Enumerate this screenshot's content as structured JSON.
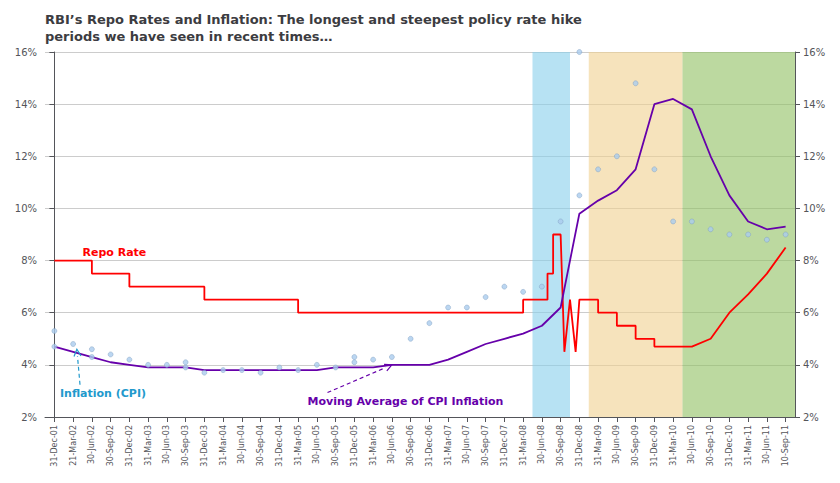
{
  "chart_data": {
    "type": "line",
    "title": "RBI’s Repo Rates and Inflation: The longest and steepest policy rate hike\nperiods we have seen in recent times…",
    "grid": true,
    "xlim": [
      -0.5,
      39.5
    ],
    "xticks": [
      {
        "value": 0,
        "label": "31-Dec-01"
      },
      {
        "value": 1,
        "label": "21-Mar-02"
      },
      {
        "value": 2,
        "label": "30-Jun-02"
      },
      {
        "value": 3,
        "label": "30-Sep-02"
      },
      {
        "value": 4,
        "label": "31-Dec-02"
      },
      {
        "value": 5,
        "label": "31-Mar-03"
      },
      {
        "value": 6,
        "label": "30-Jun-03"
      },
      {
        "value": 7,
        "label": "30-Sep-03"
      },
      {
        "value": 8,
        "label": "31-Dec-03"
      },
      {
        "value": 9,
        "label": "31-Mar-04"
      },
      {
        "value": 10,
        "label": "30-Jun-04"
      },
      {
        "value": 11,
        "label": "30-Sep-04"
      },
      {
        "value": 12,
        "label": "31-Dec-04"
      },
      {
        "value": 13,
        "label": "31-Mar-05"
      },
      {
        "value": 14,
        "label": "30-Jun-05"
      },
      {
        "value": 15,
        "label": "30-Sep-05"
      },
      {
        "value": 16,
        "label": "31-Dec-05"
      },
      {
        "value": 17,
        "label": "31-Mar-06"
      },
      {
        "value": 18,
        "label": "30-Jun-06"
      },
      {
        "value": 19,
        "label": "30-Sep-06"
      },
      {
        "value": 20,
        "label": "31-Dec-06"
      },
      {
        "value": 21,
        "label": "31-Mar-07"
      },
      {
        "value": 22,
        "label": "30-Jun-07"
      },
      {
        "value": 23,
        "label": "30-Sep-07"
      },
      {
        "value": 24,
        "label": "31-Dec-07"
      },
      {
        "value": 25,
        "label": "31-Mar-08"
      },
      {
        "value": 26,
        "label": "30-Jun-08"
      },
      {
        "value": 27,
        "label": "30-Sep-08"
      },
      {
        "value": 28,
        "label": "31-Dec-08"
      },
      {
        "value": 29,
        "label": "31-Mar-09"
      },
      {
        "value": 30,
        "label": "30-Jun-09"
      },
      {
        "value": 31,
        "label": "30-Sep-09"
      },
      {
        "value": 32,
        "label": "31-Dec-09"
      },
      {
        "value": 33,
        "label": "31-Mar-10"
      },
      {
        "value": 34,
        "label": "30-Jun-10"
      },
      {
        "value": 35,
        "label": "30-Sep-10"
      },
      {
        "value": 36,
        "label": "31-Dec-10"
      },
      {
        "value": 37,
        "label": "31-Mar-11"
      },
      {
        "value": 38,
        "label": "30-Jun-11"
      },
      {
        "value": 39,
        "label": "10-Sep-11"
      }
    ],
    "ylim": [
      0.02,
      0.16
    ],
    "yticks": [
      {
        "value": 0.02,
        "label": "2%"
      },
      {
        "value": 0.04,
        "label": "4%"
      },
      {
        "value": 0.06,
        "label": "6%"
      },
      {
        "value": 0.08,
        "label": "8%"
      },
      {
        "value": 0.1,
        "label": "10%"
      },
      {
        "value": 0.12,
        "label": "12%"
      },
      {
        "value": 0.14,
        "label": "14%"
      },
      {
        "value": 0.16,
        "label": "16%"
      }
    ],
    "y2lim": [
      0.02,
      0.16
    ],
    "y2ticks": [
      {
        "value": 0.02,
        "label": "2%"
      },
      {
        "value": 0.04,
        "label": "4%"
      },
      {
        "value": 0.06,
        "label": "6%"
      },
      {
        "value": 0.08,
        "label": "8%"
      },
      {
        "value": 0.1,
        "label": "10%"
      },
      {
        "value": 0.12,
        "label": "12%"
      },
      {
        "value": 0.14,
        "label": "14%"
      },
      {
        "value": 0.16,
        "label": "16%"
      }
    ],
    "bands": [
      {
        "x": [
          25.5,
          27.5
        ],
        "color": "#87CEEB"
      },
      {
        "x": [
          28.5,
          33.5
        ],
        "color": "#F0D090"
      },
      {
        "x": [
          33.5,
          39.5
        ],
        "color": "#90C060"
      }
    ],
    "series": [
      {
        "type": "line",
        "color": "#ff0000",
        "x": [
          0.0,
          2.0,
          2.0,
          4.0,
          4.0,
          8.0,
          8.0,
          13.0,
          13.0,
          17.0,
          17.0,
          20.0,
          20.0,
          22.0,
          22.0,
          23.0,
          23.0,
          25.0,
          25.0,
          26.0,
          26.0,
          26.3,
          26.3,
          26.6,
          26.6,
          27.0,
          27.0,
          27.2,
          27.2,
          27.5,
          27.5,
          27.8,
          27.8,
          28.0,
          28.0,
          29.0,
          29.0,
          30.0,
          30.0,
          31.0,
          31.0,
          32.0,
          32.0,
          33.0,
          33.0,
          34.0,
          34.0,
          35.0,
          35.0,
          36.0,
          36.0,
          37.0,
          37.0,
          38.0,
          38.0,
          39.0
        ],
        "values": [
          0.08,
          0.08,
          0.075,
          0.075,
          0.07,
          0.07,
          0.065,
          0.065,
          0.06,
          0.06,
          0.06,
          0.06,
          0.06,
          0.06,
          0.06,
          0.06,
          0.06,
          0.06,
          0.065,
          0.065,
          0.065,
          0.065,
          0.075,
          0.075,
          0.09,
          0.09,
          0.09,
          0.045,
          0.045,
          0.065,
          0.065,
          0.045,
          0.045,
          0.065,
          0.065,
          0.065,
          0.06,
          0.06,
          0.055,
          0.055,
          0.05,
          0.05,
          0.047,
          0.047,
          0.047,
          0.047,
          0.047,
          0.05,
          0.05,
          0.06,
          0.06,
          0.067,
          0.067,
          0.075,
          0.075,
          0.085
        ]
      },
      {
        "type": "line",
        "color": "#6600aa",
        "x": [
          0,
          1,
          2,
          3,
          4,
          5,
          6,
          7,
          8,
          9,
          10,
          11,
          12,
          13,
          14,
          15,
          16,
          17,
          18,
          19,
          20,
          21,
          22,
          23,
          24,
          25,
          26,
          27,
          28,
          29,
          30,
          31,
          32,
          33,
          34,
          35,
          36,
          37,
          38,
          39
        ],
        "values": [
          0.047,
          0.045,
          0.043,
          0.041,
          0.04,
          0.039,
          0.039,
          0.039,
          0.038,
          0.038,
          0.038,
          0.038,
          0.038,
          0.038,
          0.038,
          0.039,
          0.039,
          0.039,
          0.04,
          0.04,
          0.04,
          0.042,
          0.045,
          0.048,
          0.05,
          0.052,
          0.055,
          0.062,
          0.098,
          0.103,
          0.107,
          0.115,
          0.14,
          0.142,
          0.138,
          0.12,
          0.105,
          0.095,
          0.092,
          0.093
        ]
      },
      {
        "type": "scatter",
        "color": "#aaccee",
        "x": [
          0,
          0,
          1,
          2,
          2,
          3,
          4,
          5,
          6,
          7,
          7,
          8,
          9,
          10,
          11,
          12,
          13,
          14,
          15,
          16,
          16,
          17,
          18,
          19,
          20,
          21,
          22,
          23,
          24,
          25,
          26,
          27,
          28,
          28,
          29,
          30,
          31,
          32,
          33,
          34,
          35,
          36,
          37,
          38,
          39
        ],
        "values": [
          0.053,
          0.047,
          0.048,
          0.046,
          0.043,
          0.044,
          0.042,
          0.04,
          0.04,
          0.039,
          0.041,
          0.037,
          0.038,
          0.038,
          0.037,
          0.039,
          0.038,
          0.04,
          0.039,
          0.041,
          0.043,
          0.042,
          0.043,
          0.05,
          0.056,
          0.062,
          0.062,
          0.066,
          0.07,
          0.068,
          0.07,
          0.095,
          0.105,
          0.16,
          0.115,
          0.12,
          0.148,
          0.115,
          0.095,
          0.095,
          0.092,
          0.09,
          0.09,
          0.088,
          0.09
        ]
      }
    ],
    "annotations": [
      {
        "text": "Repo Rate",
        "x": 1.5,
        "y": 0.081,
        "color": "#ff0000"
      },
      {
        "text": "Inflation (CPI)",
        "x": 0.3,
        "y": 0.027,
        "arrow_x": 1.2,
        "arrow_y": 0.046,
        "color": "#2299CC"
      },
      {
        "text": "Moving Average of CPI Inflation",
        "x": 13.5,
        "y": 0.024,
        "arrow_x": 18.0,
        "arrow_y": 0.04,
        "color": "#6600aa"
      }
    ]
  }
}
